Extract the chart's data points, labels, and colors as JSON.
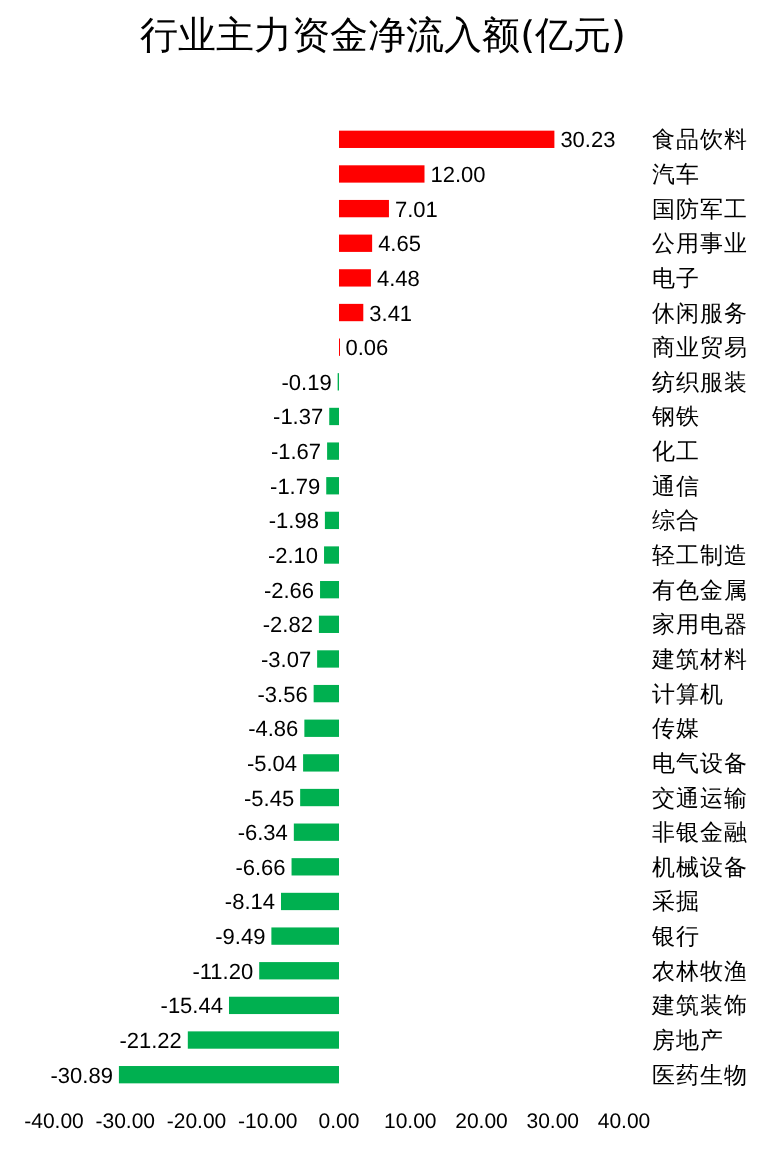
{
  "chart_data": {
    "type": "bar",
    "orientation": "horizontal",
    "title": "行业主力资金净流入额(亿元)",
    "categories": [
      "食品饮料",
      "汽车",
      "国防军工",
      "公用事业",
      "电子",
      "休闲服务",
      "商业贸易",
      "纺织服装",
      "钢铁",
      "化工",
      "通信",
      "综合",
      "轻工制造",
      "有色金属",
      "家用电器",
      "建筑材料",
      "计算机",
      "传媒",
      "电气设备",
      "交通运输",
      "非银金融",
      "机械设备",
      "采掘",
      "银行",
      "农林牧渔",
      "建筑装饰",
      "房地产",
      "医药生物"
    ],
    "values": [
      30.23,
      12.0,
      7.01,
      4.65,
      4.48,
      3.41,
      0.06,
      -0.19,
      -1.37,
      -1.67,
      -1.79,
      -1.98,
      -2.1,
      -2.66,
      -2.82,
      -3.07,
      -3.56,
      -4.86,
      -5.04,
      -5.45,
      -6.34,
      -6.66,
      -8.14,
      -9.49,
      -11.2,
      -15.44,
      -21.22,
      -30.89
    ],
    "value_labels": [
      "30.23",
      "12.00",
      "7.01",
      "4.65",
      "4.48",
      "3.41",
      "0.06",
      "-0.19",
      "-1.37",
      "-1.67",
      "-1.79",
      "-1.98",
      "-2.10",
      "-2.66",
      "-2.82",
      "-3.07",
      "-3.56",
      "-4.86",
      "-5.04",
      "-5.45",
      "-6.34",
      "-6.66",
      "-8.14",
      "-9.49",
      "-11.20",
      "-15.44",
      "-21.22",
      "-30.89"
    ],
    "colors": [
      "#ff0000",
      "#ff0000",
      "#ff0000",
      "#ff0000",
      "#ff0000",
      "#ff0000",
      "#ff0000",
      "#00b050",
      "#00b050",
      "#00b050",
      "#00b050",
      "#00b050",
      "#00b050",
      "#00b050",
      "#00b050",
      "#00b050",
      "#00b050",
      "#00b050",
      "#00b050",
      "#00b050",
      "#00b050",
      "#00b050",
      "#00b050",
      "#00b050",
      "#00b050",
      "#00b050",
      "#00b050",
      "#00b050"
    ],
    "xlim": [
      -40,
      40
    ],
    "xticks": [
      {
        "value": -40,
        "label": "-40.00"
      },
      {
        "value": -30,
        "label": "-30.00"
      },
      {
        "value": -20,
        "label": "-20.00"
      },
      {
        "value": -10,
        "label": "-10.00"
      },
      {
        "value": 0,
        "label": "0.00"
      },
      {
        "value": 10,
        "label": "10.00"
      },
      {
        "value": 20,
        "label": "20.00"
      },
      {
        "value": 30,
        "label": "30.00"
      },
      {
        "value": 40,
        "label": "40.00"
      }
    ],
    "grid": false
  }
}
